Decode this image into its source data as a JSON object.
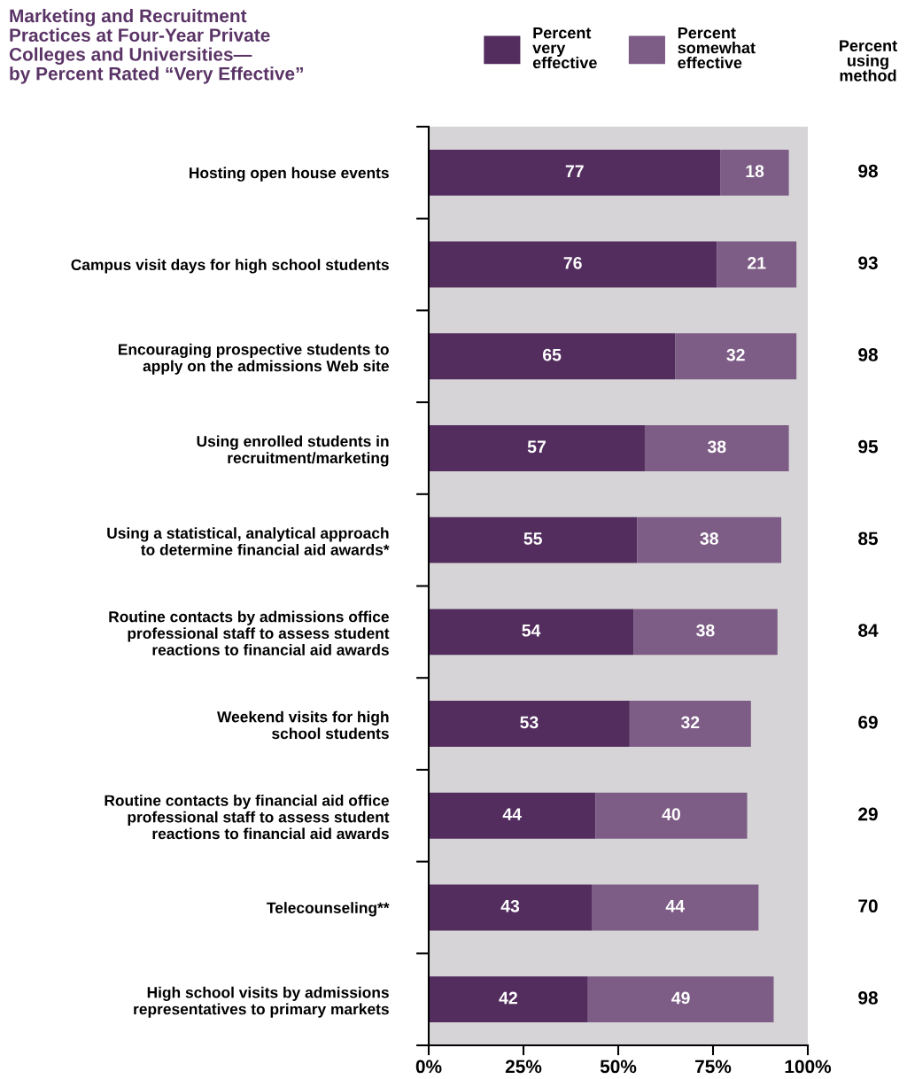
{
  "chart_data": {
    "type": "bar",
    "orientation": "horizontal",
    "stacked": true,
    "title": "Marketing and Recruitment\nPractices at Four-Year Private\nColleges and Universities—\nby Percent Rated “Very Effective”",
    "categories": [
      "Hosting open house events",
      "Campus visit days for high school students",
      "Encouraging prospective students to\napply on the admissions Web site",
      "Using enrolled students in\nrecruitment/marketing",
      "Using a statistical, analytical approach\nto determine financial aid awards*",
      "Routine contacts by admissions office\nprofessional staff to assess student\nreactions to financial aid awards",
      "Weekend visits for high\nschool students",
      "Routine contacts by financial aid office\nprofessional staff to assess student\nreactions to financial aid awards",
      "Telecounseling**",
      "High school visits by admissions\nrepresentatives to primary markets"
    ],
    "series": [
      {
        "name": "Percent\nvery\neffective",
        "color": "#522d5e",
        "values": [
          77,
          76,
          65,
          57,
          55,
          54,
          53,
          44,
          43,
          42
        ]
      },
      {
        "name": "Percent\nsomewhat\neffective",
        "color": "#7d5c85",
        "values": [
          18,
          21,
          32,
          38,
          38,
          38,
          32,
          40,
          44,
          49
        ]
      }
    ],
    "xlim": [
      0,
      100
    ],
    "xticks": [
      {
        "value": 0,
        "label": "0%"
      },
      {
        "value": 25,
        "label": "25%"
      },
      {
        "value": 50,
        "label": "50%"
      },
      {
        "value": 75,
        "label": "75%"
      },
      {
        "value": 100,
        "label": "100%"
      }
    ],
    "data_labels": true,
    "legend": "top",
    "grid": false,
    "annotations": [
      "Percent\nusing\nmethod",
      "98",
      "93",
      "98",
      "95",
      "85",
      "84",
      "69",
      "29",
      "70",
      "98"
    ]
  }
}
